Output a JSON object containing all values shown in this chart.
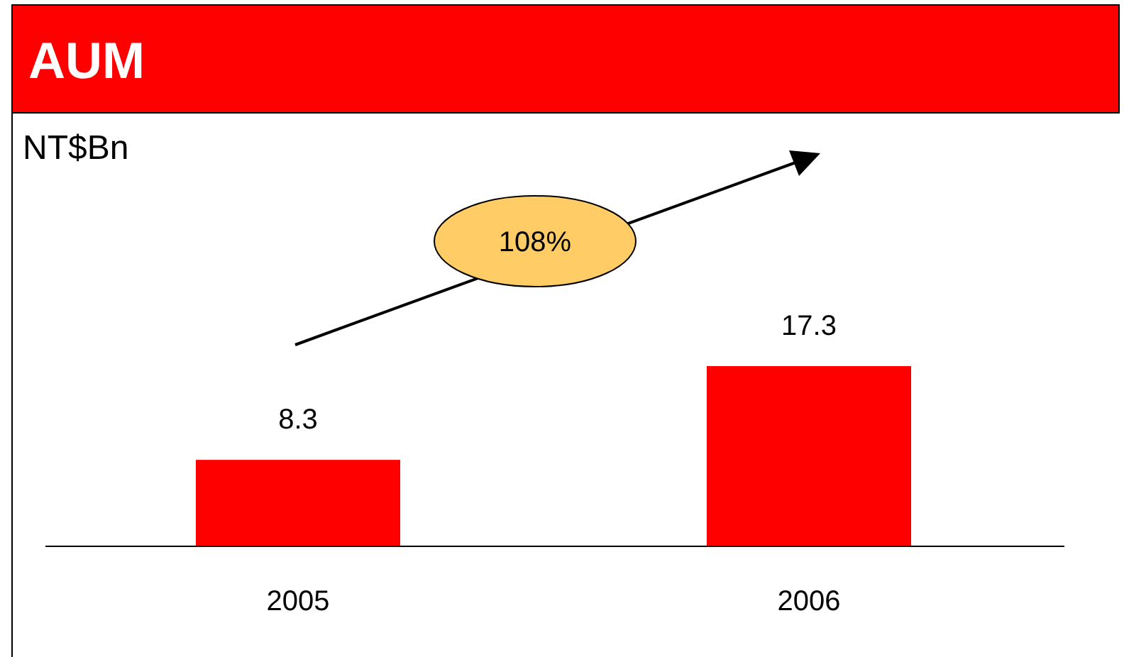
{
  "chart_data": {
    "type": "bar",
    "title": "AUM",
    "categories": [
      "2005",
      "2006"
    ],
    "values": [
      8.3,
      17.3
    ],
    "color": "#ff0000",
    "data_labels": true,
    "annotations": [
      "NT$Bn",
      "108%"
    ]
  }
}
